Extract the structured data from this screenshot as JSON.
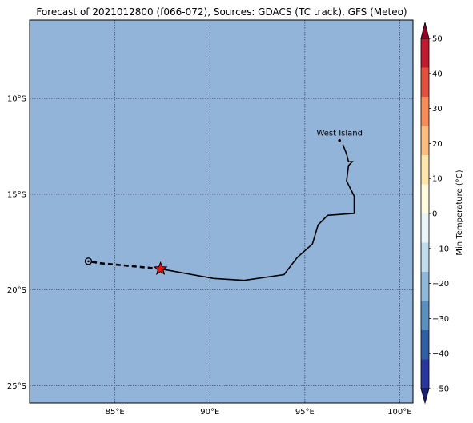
{
  "title": "Forecast of 2021012800 (f066-072), Sources: GDACS (TC track), GFS (Meteo)",
  "map": {
    "background_color": "#91b4d8",
    "lon_range": [
      80.5,
      100.7
    ],
    "lat_range": [
      -5.9,
      -25.9
    ],
    "lon_ticks": [
      {
        "value": 85,
        "label": "85°E"
      },
      {
        "value": 90,
        "label": "90°E"
      },
      {
        "value": 95,
        "label": "95°E"
      },
      {
        "value": 100,
        "label": "100°E"
      }
    ],
    "lat_ticks": [
      {
        "value": -10,
        "label": "10°S"
      },
      {
        "value": -15,
        "label": "15°S"
      },
      {
        "value": -20,
        "label": "20°S"
      },
      {
        "value": -25,
        "label": "25°S"
      }
    ],
    "place": {
      "name": "West Island",
      "lon": 96.83,
      "lat": -12.19
    },
    "track_past": [
      [
        97.0,
        -12.4
      ],
      [
        97.2,
        -12.9
      ],
      [
        97.3,
        -13.3
      ],
      [
        97.5,
        -13.3
      ],
      [
        97.3,
        -13.5
      ],
      [
        97.2,
        -14.3
      ],
      [
        97.6,
        -15.1
      ],
      [
        97.6,
        -16.0
      ],
      [
        96.2,
        -16.1
      ],
      [
        95.7,
        -16.6
      ],
      [
        95.4,
        -17.6
      ],
      [
        94.6,
        -18.3
      ],
      [
        93.9,
        -19.2
      ],
      [
        91.8,
        -19.5
      ],
      [
        90.2,
        -19.4
      ],
      [
        87.4,
        -18.9
      ]
    ],
    "track_forecast": [
      [
        87.4,
        -18.9
      ],
      [
        84.2,
        -18.6
      ],
      [
        83.6,
        -18.5
      ]
    ],
    "current_position": {
      "lon": 87.4,
      "lat": -18.9
    },
    "forecast_end": {
      "lon": 83.6,
      "lat": -18.5
    }
  },
  "colorbar": {
    "label": "Min Temperature (°C)",
    "range": [
      -50,
      50
    ],
    "ticks": [
      "50",
      "40",
      "30",
      "20",
      "10",
      "0",
      "−10",
      "−20",
      "−30",
      "−40",
      "−50"
    ],
    "colors": [
      "#1b1f76",
      "#27379f",
      "#2f5fa6",
      "#5a8fc1",
      "#8fb9d9",
      "#c1dcec",
      "#e9f5f8",
      "#fffcdd",
      "#fee5a9",
      "#fdbd7c",
      "#f88c57",
      "#e2513c",
      "#bf1c2f",
      "#8f0228"
    ]
  }
}
